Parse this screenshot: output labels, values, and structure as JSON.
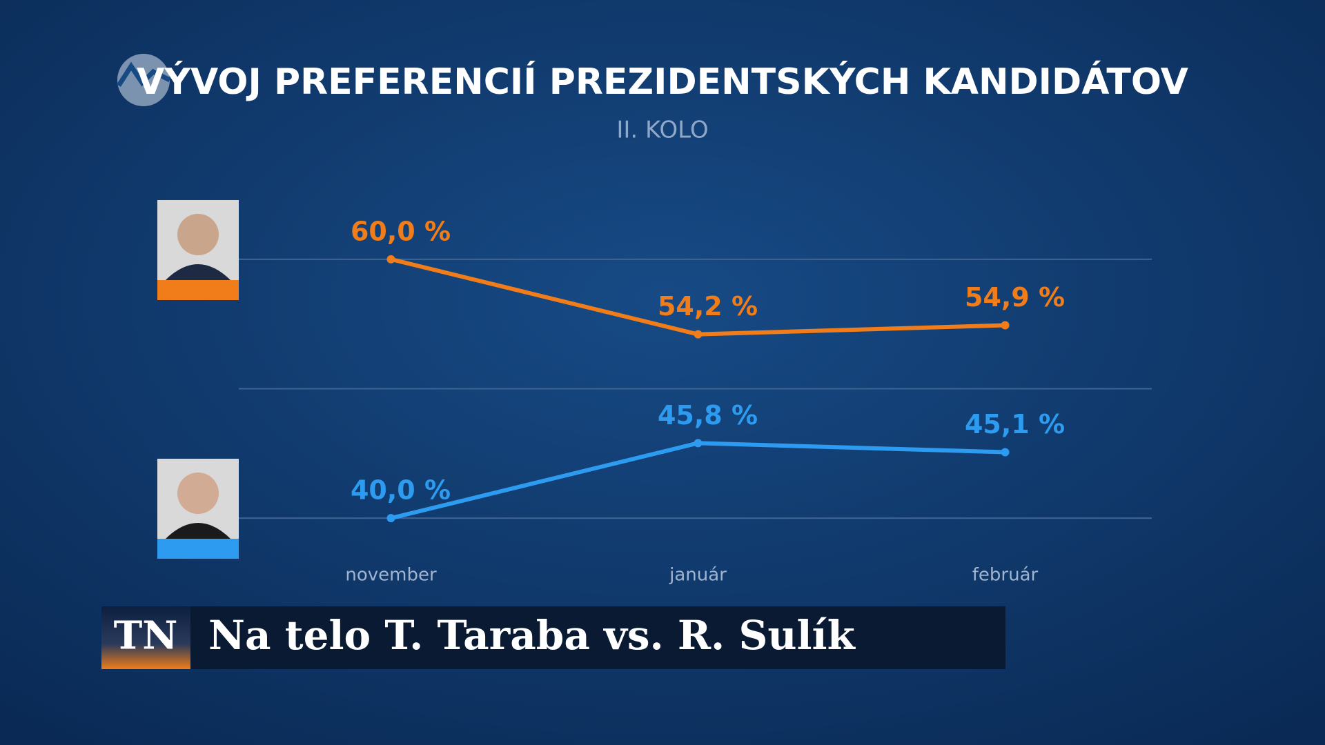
{
  "chart_data": {
    "type": "line",
    "title": "VÝVOJ PREFERENCIÍ PREZIDENTSKÝCH KANDIDÁTOV",
    "subtitle": "II. KOLO",
    "categories": [
      "november",
      "január",
      "február"
    ],
    "series": [
      {
        "color": "#f07d19",
        "values": [
          60.0,
          54.2,
          54.9
        ],
        "value_labels": [
          "60,0 %",
          "54,2 %",
          "54,9 %"
        ]
      },
      {
        "color": "#2d9cf0",
        "values": [
          40.0,
          45.8,
          45.1
        ],
        "value_labels": [
          "40,0 %",
          "45,8 %",
          "45,1 %"
        ]
      }
    ],
    "ylim": [
      35,
      65
    ],
    "yticks": [
      40,
      50,
      60
    ],
    "grid": true
  },
  "ticker": {
    "logo": "TN",
    "text": "Na telo T. Taraba vs. R. Sulík"
  }
}
